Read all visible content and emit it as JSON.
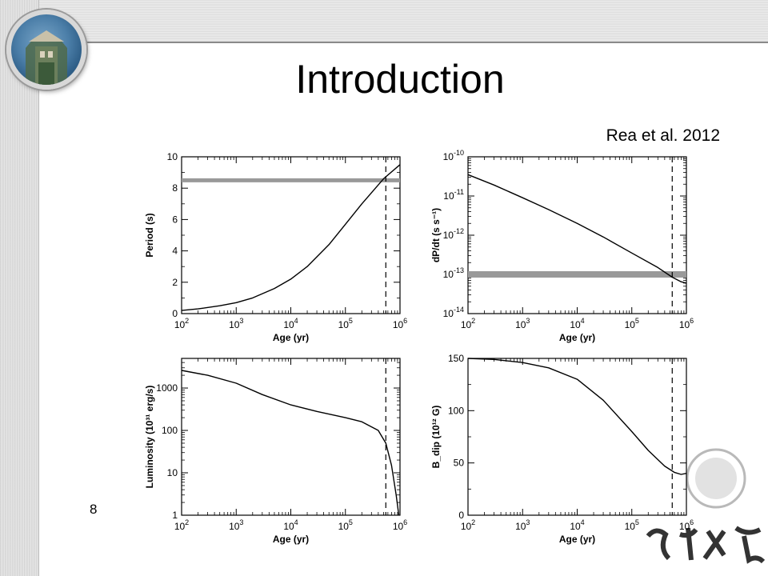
{
  "slide": {
    "title": "Introduction",
    "citation": "Rea et al. 2012",
    "page_number": "8"
  },
  "chart_data": [
    {
      "type": "line",
      "panel": "top-left",
      "xlabel": "Age (yr)",
      "ylabel": "Period (s)",
      "xscale": "log",
      "xlim": [
        100,
        1000000
      ],
      "ylim": [
        0,
        10
      ],
      "x_ticks": [
        100,
        1000,
        10000,
        100000,
        1000000
      ],
      "y_ticks": [
        0,
        2,
        4,
        6,
        8,
        10
      ],
      "y_tick_labels": [
        "0",
        "2",
        "4",
        "6",
        "8",
        "10"
      ],
      "series": [
        {
          "x": [
            100,
            200,
            500,
            1000,
            2000,
            5000,
            10000,
            20000,
            50000,
            100000,
            200000,
            500000,
            1000000
          ],
          "y": [
            0.2,
            0.3,
            0.5,
            0.7,
            1.0,
            1.6,
            2.2,
            3.0,
            4.4,
            5.7,
            7.0,
            8.6,
            9.5
          ]
        }
      ],
      "hline": {
        "y": 8.5,
        "color": "#999999"
      },
      "vline": {
        "x": 550000
      }
    },
    {
      "type": "line",
      "panel": "top-right",
      "xlabel": "Age (yr)",
      "ylabel": "dP/dt (s s⁻¹)",
      "xscale": "log",
      "yscale": "log",
      "xlim": [
        100,
        1000000
      ],
      "ylim": [
        1e-14,
        1e-10
      ],
      "x_ticks": [
        100,
        1000,
        10000,
        100000,
        1000000
      ],
      "y_ticks": [
        1e-14,
        1e-13,
        1e-12,
        1e-11,
        1e-10
      ],
      "series": [
        {
          "x": [
            100,
            300,
            1000,
            3000,
            10000,
            30000,
            100000,
            300000,
            550000,
            800000,
            1000000
          ],
          "y": [
            3.5e-11,
            1.9e-11,
            9e-12,
            4.5e-12,
            2e-12,
            9e-13,
            3.5e-13,
            1.5e-13,
            8.5e-14,
            6.5e-14,
            6e-14
          ]
        }
      ],
      "hline": {
        "y": 1e-13,
        "color": "#999999"
      },
      "vline": {
        "x": 550000
      }
    },
    {
      "type": "line",
      "panel": "bottom-left",
      "xlabel": "Age (yr)",
      "ylabel": "Luminosity (10³¹ erg/s)",
      "xscale": "log",
      "yscale": "log",
      "xlim": [
        100,
        1000000
      ],
      "ylim": [
        1,
        5000
      ],
      "x_ticks": [
        100,
        1000,
        10000,
        100000,
        1000000
      ],
      "y_ticks": [
        1,
        10,
        100,
        1000
      ],
      "y_tick_labels": [
        "1",
        "10",
        "100",
        "1000"
      ],
      "series": [
        {
          "x": [
            100,
            300,
            1000,
            3000,
            10000,
            30000,
            100000,
            200000,
            400000,
            550000,
            700000,
            850000,
            950000
          ],
          "y": [
            2600,
            2000,
            1300,
            700,
            400,
            280,
            200,
            160,
            100,
            50,
            15,
            3,
            1
          ]
        }
      ],
      "vline": {
        "x": 550000
      }
    },
    {
      "type": "line",
      "panel": "bottom-right",
      "xlabel": "Age (yr)",
      "ylabel": "B_dip (10¹² G)",
      "xscale": "log",
      "xlim": [
        100,
        1000000
      ],
      "ylim": [
        0,
        150
      ],
      "x_ticks": [
        100,
        1000,
        10000,
        100000,
        1000000
      ],
      "y_ticks": [
        0,
        50,
        100,
        150
      ],
      "y_tick_labels": [
        "0",
        "50",
        "100",
        "150"
      ],
      "series": [
        {
          "x": [
            100,
            300,
            1000,
            3000,
            10000,
            30000,
            100000,
            200000,
            400000,
            600000,
            800000,
            1000000
          ],
          "y": [
            150,
            149,
            146,
            141,
            130,
            110,
            80,
            62,
            47,
            41,
            39,
            40
          ]
        }
      ],
      "vline": {
        "x": 550000
      }
    }
  ]
}
